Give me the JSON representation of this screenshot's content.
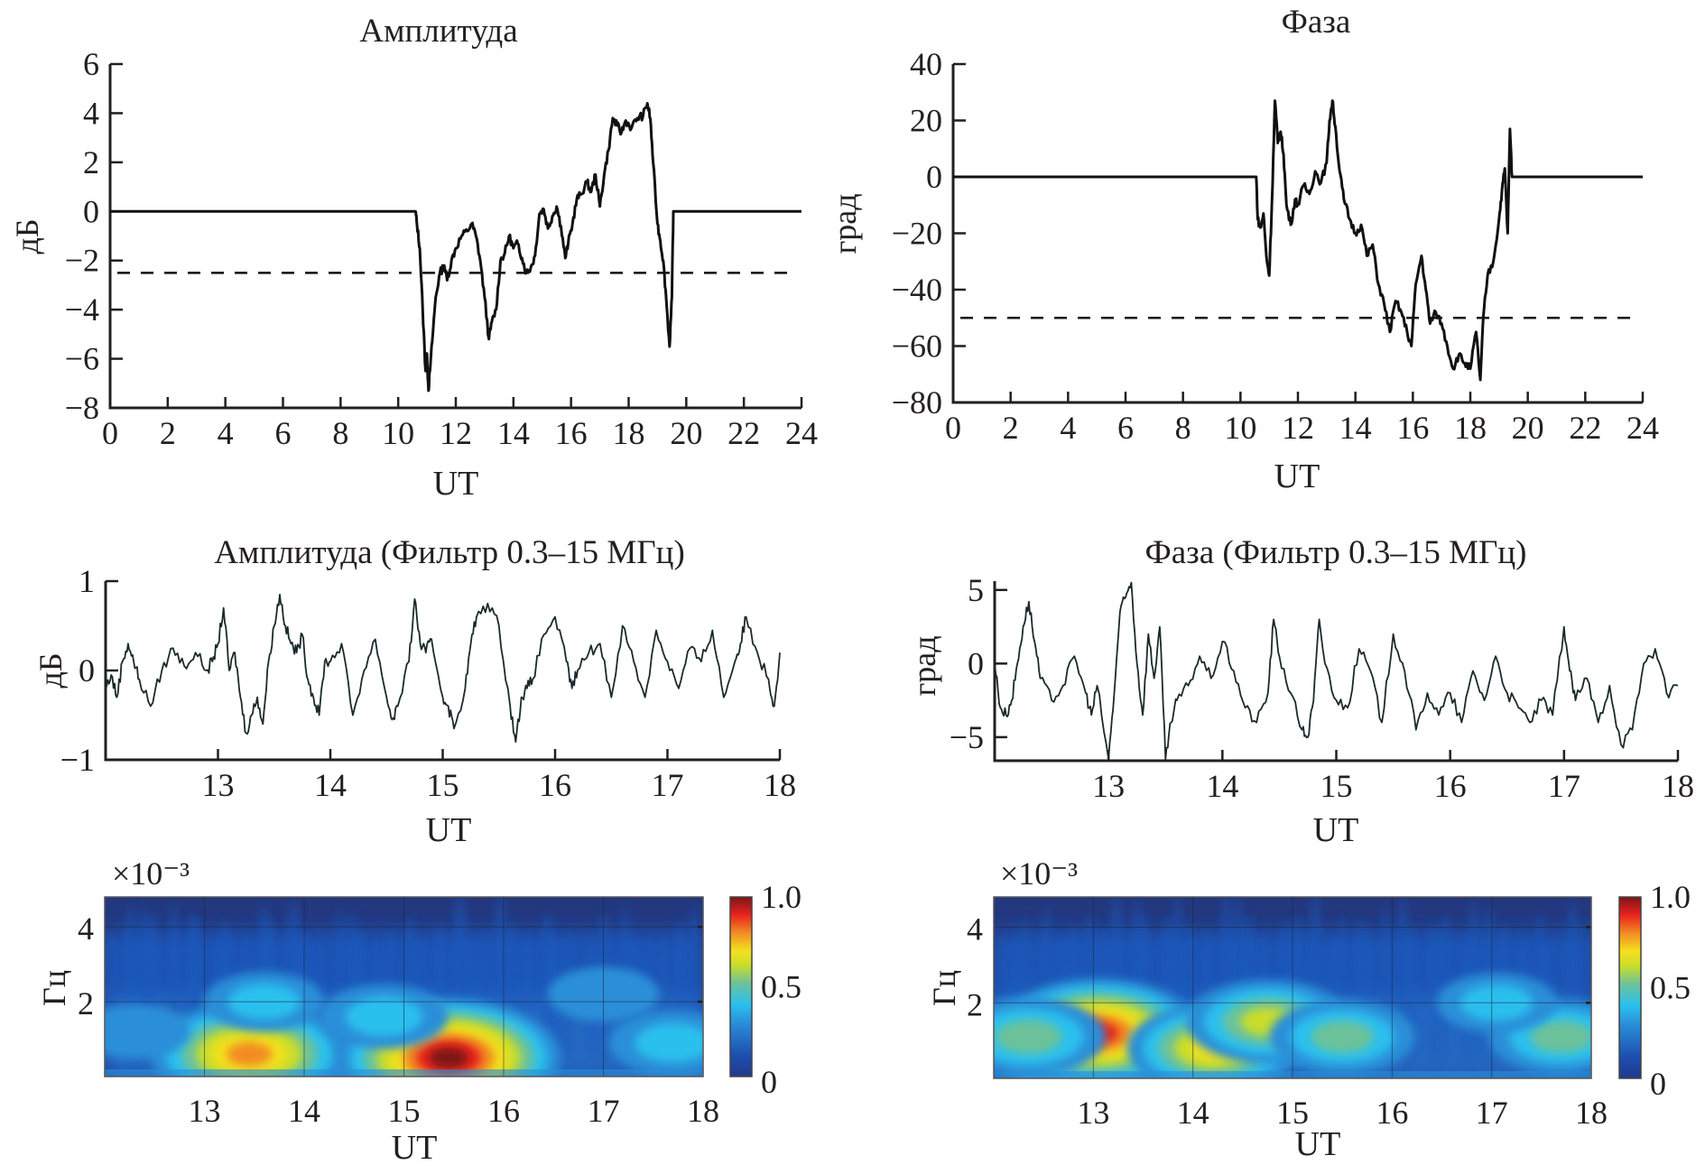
{
  "chart_data": [
    {
      "id": "amp",
      "type": "line",
      "title": "Амплитуда",
      "xlabel": "UT",
      "ylabel": "дБ",
      "xlim": [
        0,
        24
      ],
      "ylim": [
        -8,
        6
      ],
      "xticks": [
        0,
        2,
        4,
        6,
        8,
        10,
        12,
        14,
        16,
        18,
        20,
        22,
        24
      ],
      "yticks": [
        6,
        4,
        2,
        0,
        -2,
        -4,
        -6,
        -8
      ],
      "threshold": -2.5,
      "series": [
        {
          "name": "amplitude",
          "x": [
            0,
            10.6,
            10.65,
            10.75,
            10.85,
            10.95,
            11.0,
            11.05,
            11.1,
            11.2,
            11.3,
            11.45,
            11.6,
            11.7,
            11.85,
            12.0,
            12.2,
            12.4,
            12.55,
            12.7,
            12.85,
            13.0,
            13.15,
            13.25,
            13.4,
            13.55,
            13.7,
            13.85,
            14.0,
            14.15,
            14.3,
            14.45,
            14.6,
            14.75,
            14.9,
            15.05,
            15.2,
            15.35,
            15.5,
            15.65,
            15.8,
            15.9,
            16.05,
            16.2,
            16.35,
            16.55,
            16.7,
            16.85,
            17.0,
            17.15,
            17.3,
            17.45,
            17.6,
            17.75,
            17.9,
            18.1,
            18.3,
            18.5,
            18.65,
            18.75,
            18.85,
            19.0,
            19.1,
            19.2,
            19.3,
            19.42,
            19.5,
            19.55,
            24
          ],
          "y": [
            0,
            0,
            -0.5,
            -1.5,
            -4.0,
            -6.5,
            -5.8,
            -7.3,
            -6.5,
            -5.0,
            -3.5,
            -2.5,
            -2.2,
            -2.8,
            -2.0,
            -1.5,
            -1.0,
            -0.8,
            -0.5,
            -1.0,
            -2.0,
            -3.5,
            -5.2,
            -4.5,
            -4.0,
            -2.0,
            -1.7,
            -1.0,
            -1.5,
            -1.3,
            -1.9,
            -2.5,
            -2.3,
            -1.8,
            -0.1,
            0.1,
            -0.7,
            -0.2,
            0.2,
            -0.6,
            -1.9,
            -1.3,
            -0.5,
            0.5,
            0.7,
            1.2,
            0.8,
            1.5,
            0.2,
            1.5,
            2.5,
            3.8,
            3.5,
            3.2,
            3.7,
            3.4,
            3.8,
            3.9,
            4.4,
            3.8,
            2.0,
            -0.5,
            -1.2,
            -2.0,
            -3.5,
            -5.5,
            -3.5,
            0,
            0
          ]
        }
      ]
    },
    {
      "id": "phase",
      "type": "line",
      "title": "Фаза",
      "xlabel": "UT",
      "ylabel": "град",
      "xlim": [
        0,
        24
      ],
      "ylim": [
        -80,
        40
      ],
      "xticks": [
        0,
        2,
        4,
        6,
        8,
        10,
        12,
        14,
        16,
        18,
        20,
        22,
        24
      ],
      "yticks": [
        40,
        20,
        0,
        -20,
        -40,
        -60,
        -80
      ],
      "threshold": -50,
      "series": [
        {
          "name": "phase",
          "x": [
            0,
            10.55,
            10.6,
            10.7,
            10.8,
            10.9,
            11.0,
            11.1,
            11.2,
            11.3,
            11.4,
            11.5,
            11.6,
            11.75,
            11.9,
            12.0,
            12.2,
            12.4,
            12.6,
            12.8,
            13.0,
            13.1,
            13.2,
            13.3,
            13.45,
            13.6,
            13.8,
            14.0,
            14.2,
            14.4,
            14.6,
            14.8,
            15.0,
            15.2,
            15.4,
            15.6,
            15.8,
            15.95,
            16.1,
            16.3,
            16.45,
            16.6,
            16.8,
            17.0,
            17.2,
            17.4,
            17.6,
            17.8,
            18.0,
            18.2,
            18.35,
            18.45,
            18.6,
            18.8,
            19.0,
            19.1,
            19.2,
            19.3,
            19.38,
            19.45,
            19.5,
            24
          ],
          "y": [
            0,
            0,
            -15,
            -18,
            -13,
            -28,
            -35,
            -8,
            27,
            12,
            16,
            8,
            -10,
            -17,
            -8,
            -10,
            -3,
            -6,
            2,
            -2,
            5,
            20,
            27,
            18,
            2,
            -8,
            -15,
            -20,
            -17,
            -28,
            -24,
            -38,
            -45,
            -55,
            -44,
            -48,
            -55,
            -60,
            -38,
            -28,
            -40,
            -52,
            -48,
            -52,
            -60,
            -68,
            -63,
            -66,
            -68,
            -55,
            -72,
            -50,
            -35,
            -30,
            -15,
            -5,
            3,
            -20,
            17,
            0,
            0,
            0
          ]
        }
      ]
    },
    {
      "id": "amp_filt",
      "type": "line",
      "title": "Амплитуда (Фильтр 0.3–15 МГц)",
      "xlabel": "UT",
      "ylabel": "дБ",
      "xlim": [
        12,
        18
      ],
      "ylim": [
        -1,
        1
      ],
      "xticks": [
        13,
        14,
        15,
        16,
        17,
        18
      ],
      "yticks": [
        1,
        0,
        -1
      ],
      "series": [
        {
          "name": "amplitude_filtered",
          "x": [
            12.0,
            12.05,
            12.1,
            12.15,
            12.2,
            12.25,
            12.3,
            12.4,
            12.5,
            12.6,
            12.7,
            12.8,
            12.9,
            12.95,
            13.0,
            13.05,
            13.1,
            13.15,
            13.2,
            13.25,
            13.3,
            13.35,
            13.4,
            13.45,
            13.5,
            13.55,
            13.6,
            13.65,
            13.7,
            13.75,
            13.8,
            13.85,
            13.9,
            13.95,
            14.0,
            14.1,
            14.2,
            14.3,
            14.4,
            14.5,
            14.55,
            14.6,
            14.7,
            14.75,
            14.8,
            14.85,
            14.9,
            15.0,
            15.05,
            15.1,
            15.2,
            15.25,
            15.3,
            15.4,
            15.5,
            15.6,
            15.65,
            15.7,
            15.75,
            15.8,
            15.9,
            16.0,
            16.1,
            16.15,
            16.2,
            16.3,
            16.4,
            16.5,
            16.6,
            16.7,
            16.8,
            16.9,
            17.0,
            17.1,
            17.2,
            17.3,
            17.4,
            17.5,
            17.6,
            17.65,
            17.7,
            17.8,
            17.9,
            17.95,
            18.0
          ],
          "y": [
            -0.2,
            -0.05,
            -0.3,
            0.1,
            0.3,
            0.1,
            -0.1,
            -0.4,
            0.0,
            0.25,
            0.05,
            0.2,
            0.0,
            0.1,
            0.3,
            0.7,
            0.0,
            0.2,
            -0.3,
            -0.7,
            -0.5,
            -0.3,
            -0.6,
            0.1,
            0.5,
            0.85,
            0.5,
            0.3,
            0.2,
            0.4,
            -0.1,
            -0.3,
            -0.5,
            0.1,
            0.1,
            0.3,
            -0.5,
            0.0,
            0.35,
            -0.3,
            -0.55,
            -0.4,
            0.1,
            0.8,
            0.3,
            0.2,
            0.35,
            -0.3,
            -0.4,
            -0.65,
            -0.2,
            0.3,
            0.6,
            0.75,
            0.5,
            -0.4,
            -0.8,
            -0.3,
            -0.2,
            -0.1,
            0.4,
            0.6,
            0.1,
            -0.2,
            0.0,
            0.2,
            0.3,
            -0.3,
            0.5,
            0.1,
            -0.3,
            0.45,
            0.1,
            -0.2,
            0.25,
            0.1,
            0.45,
            -0.3,
            0.1,
            0.3,
            0.6,
            0.2,
            -0.1,
            -0.4,
            0.2
          ]
        }
      ]
    },
    {
      "id": "phase_filt",
      "type": "line",
      "title": "Фаза (Фильтр 0.3–15 МГц)",
      "xlabel": "UT",
      "ylabel": "град",
      "xlim": [
        12,
        18
      ],
      "ylim": [
        -6.6,
        5.6
      ],
      "xticks": [
        13,
        14,
        15,
        16,
        17,
        18
      ],
      "yticks": [
        5,
        0,
        -5
      ],
      "series": [
        {
          "name": "phase_filtered",
          "x": [
            12.0,
            12.05,
            12.1,
            12.15,
            12.2,
            12.25,
            12.3,
            12.35,
            12.4,
            12.5,
            12.6,
            12.7,
            12.8,
            12.85,
            12.9,
            13.0,
            13.05,
            13.1,
            13.15,
            13.2,
            13.25,
            13.3,
            13.35,
            13.4,
            13.45,
            13.5,
            13.55,
            13.6,
            13.7,
            13.8,
            13.9,
            14.0,
            14.1,
            14.2,
            14.3,
            14.4,
            14.45,
            14.5,
            14.6,
            14.7,
            14.75,
            14.8,
            14.85,
            14.9,
            15.0,
            15.1,
            15.2,
            15.3,
            15.4,
            15.5,
            15.6,
            15.7,
            15.8,
            15.9,
            16.0,
            16.1,
            16.2,
            16.3,
            16.4,
            16.5,
            16.6,
            16.7,
            16.8,
            16.9,
            17.0,
            17.05,
            17.1,
            17.2,
            17.3,
            17.4,
            17.5,
            17.6,
            17.7,
            17.8,
            17.9,
            18.0
          ],
          "y": [
            0,
            -3,
            -3.5,
            -2.5,
            0,
            2.5,
            4.2,
            1.5,
            -1,
            -2.5,
            -1.5,
            0.5,
            -2.0,
            -3.5,
            -1.5,
            -6.5,
            -2.0,
            3.5,
            4.5,
            5.5,
            0,
            -3.5,
            2.0,
            -1.0,
            2.5,
            -6.5,
            -4.0,
            -2.5,
            -1.5,
            0.5,
            -1.0,
            1.5,
            -0.5,
            -3.0,
            -4.0,
            -2.0,
            3.0,
            0.5,
            -2.0,
            -4.5,
            -5.0,
            -2.5,
            3.0,
            0.0,
            -2.5,
            -3.0,
            1.0,
            -0.5,
            -4.0,
            2.0,
            -0.5,
            -4.5,
            -2.0,
            -3.5,
            -2.0,
            -4.0,
            -0.5,
            -2.5,
            0.5,
            -2.0,
            -3.0,
            -4.0,
            -2.5,
            -3.5,
            2.5,
            -0.5,
            -2.5,
            -1.0,
            -4.0,
            -1.5,
            -5.5,
            -4.5,
            0.0,
            1.0,
            -2.0,
            -1.5
          ]
        }
      ]
    },
    {
      "id": "amp_wavelet",
      "type": "heatmap",
      "title": "",
      "xlabel": "UT",
      "ylabel": "Гц",
      "y_multiplier": "×10⁻³",
      "xlim": [
        12,
        18
      ],
      "ylim": [
        0,
        4.8
      ],
      "xticks": [
        13,
        14,
        15,
        16,
        17,
        18
      ],
      "yticks": [
        4,
        2
      ],
      "colorbar": {
        "ticks": [
          "1.0",
          "0.5",
          "0"
        ],
        "range": [
          0,
          1
        ]
      },
      "hotspots": [
        {
          "x": 13.45,
          "y": 0.6,
          "value": 0.85
        },
        {
          "x": 15.45,
          "y": 0.5,
          "value": 1.0
        },
        {
          "x": 14.8,
          "y": 1.6,
          "value": 0.45
        },
        {
          "x": 13.6,
          "y": 2.0,
          "value": 0.4
        },
        {
          "x": 17.7,
          "y": 0.9,
          "value": 0.45
        },
        {
          "x": 17.0,
          "y": 2.2,
          "value": 0.35
        },
        {
          "x": 12.3,
          "y": 1.2,
          "value": 0.35
        }
      ]
    },
    {
      "id": "phase_wavelet",
      "type": "heatmap",
      "title": "",
      "xlabel": "UT",
      "ylabel": "Гц",
      "y_multiplier": "×10⁻³",
      "xlim": [
        12,
        18
      ],
      "ylim": [
        0,
        4.8
      ],
      "xticks": [
        13,
        14,
        15,
        16,
        17,
        18
      ],
      "yticks": [
        4,
        2
      ],
      "colorbar": {
        "ticks": [
          "1.0",
          "0.5",
          "0"
        ],
        "range": [
          0,
          1
        ]
      },
      "hotspots": [
        {
          "x": 13.3,
          "y": 0.35,
          "value": 1.0
        },
        {
          "x": 13.05,
          "y": 1.2,
          "value": 0.9
        },
        {
          "x": 12.35,
          "y": 1.1,
          "value": 0.6
        },
        {
          "x": 14.2,
          "y": 0.8,
          "value": 0.7
        },
        {
          "x": 14.75,
          "y": 1.5,
          "value": 0.65
        },
        {
          "x": 15.5,
          "y": 1.1,
          "value": 0.55
        },
        {
          "x": 17.7,
          "y": 1.1,
          "value": 0.55
        },
        {
          "x": 17.05,
          "y": 2.0,
          "value": 0.4
        }
      ]
    }
  ]
}
